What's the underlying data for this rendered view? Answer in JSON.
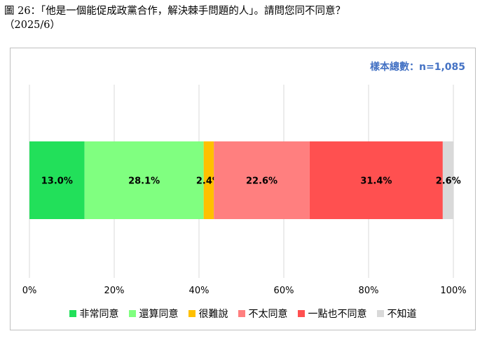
{
  "caption": {
    "line1": "圖 26：「他是一個能促成政黨合作，解決棘手問題的人」。請問您同不同意？",
    "line2": "（2025/6）"
  },
  "sample_note": "樣本總數：n=1,085",
  "chart_data": {
    "type": "bar",
    "orientation": "horizontal",
    "stacked": true,
    "xlim": [
      0,
      100
    ],
    "x_ticks": [
      "0%",
      "20%",
      "40%",
      "60%",
      "80%",
      "100%"
    ],
    "grid": true,
    "legend_position": "bottom",
    "series": [
      {
        "name": "非常同意",
        "value": 13.0,
        "label": "13.0%",
        "color": "#22e05a"
      },
      {
        "name": "還算同意",
        "value": 28.1,
        "label": "28.1%",
        "color": "#80ff80"
      },
      {
        "name": "很難說",
        "value": 2.4,
        "label": "2.4%",
        "color": "#ffc000"
      },
      {
        "name": "不太同意",
        "value": 22.6,
        "label": "22.6%",
        "color": "#ff7f7f"
      },
      {
        "name": "一點也不同意",
        "value": 31.4,
        "label": "31.4%",
        "color": "#ff5050"
      },
      {
        "name": "不知道",
        "value": 2.6,
        "label": "2.6%",
        "color": "#d9d9d9"
      }
    ]
  }
}
